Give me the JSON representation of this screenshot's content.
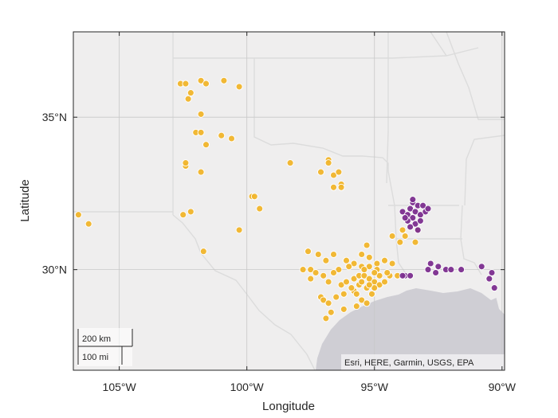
{
  "map": {
    "basemap_attribution": "Esri, HERE, Garmin, USGS, EPA",
    "colors": {
      "land": "#efeeee",
      "water": "#cfced4",
      "border": "#dcdcdc",
      "grid": "#c8c8c8",
      "frame": "#262626"
    }
  },
  "axes": {
    "xlabel": "Longitude",
    "ylabel": "Latitude",
    "xticks": [
      {
        "value": -105,
        "label": "105°W"
      },
      {
        "value": -100,
        "label": "100°W"
      },
      {
        "value": -95,
        "label": "95°W"
      },
      {
        "value": -90,
        "label": "90°W"
      }
    ],
    "yticks": [
      {
        "value": 35,
        "label": "35°N"
      },
      {
        "value": 30,
        "label": "30°N"
      }
    ],
    "lon_range": [
      -106.8,
      -89.9
    ],
    "lat_range": [
      26.7,
      37.8
    ]
  },
  "scale_bar": {
    "km_label": "200 km",
    "mi_label": "100 mi"
  },
  "chart_data": {
    "type": "scatter",
    "xlabel": "Longitude",
    "ylabel": "Latitude",
    "xlim": [
      -106.8,
      -89.9
    ],
    "ylim": [
      26.7,
      37.8
    ],
    "series": [
      {
        "color": "#f0b42a",
        "points": [
          [
            -106.6,
            31.8
          ],
          [
            -106.2,
            31.5
          ],
          [
            -102.6,
            36.1
          ],
          [
            -102.4,
            36.1
          ],
          [
            -101.8,
            36.2
          ],
          [
            -101.6,
            36.1
          ],
          [
            -100.9,
            36.2
          ],
          [
            -100.3,
            36.0
          ],
          [
            -102.2,
            35.8
          ],
          [
            -102.3,
            35.6
          ],
          [
            -101.8,
            35.1
          ],
          [
            -102.0,
            34.5
          ],
          [
            -101.8,
            34.5
          ],
          [
            -101.6,
            34.1
          ],
          [
            -101.0,
            34.4
          ],
          [
            -100.6,
            34.3
          ],
          [
            -102.4,
            33.4
          ],
          [
            -102.4,
            33.5
          ],
          [
            -101.8,
            33.2
          ],
          [
            -99.8,
            32.4
          ],
          [
            -99.7,
            32.4
          ],
          [
            -99.5,
            32.0
          ],
          [
            -102.5,
            31.8
          ],
          [
            -102.2,
            31.9
          ],
          [
            -100.3,
            31.3
          ],
          [
            -101.7,
            30.6
          ],
          [
            -98.3,
            33.5
          ],
          [
            -97.1,
            33.2
          ],
          [
            -96.8,
            33.6
          ],
          [
            -96.8,
            33.5
          ],
          [
            -96.6,
            33.1
          ],
          [
            -96.4,
            33.2
          ],
          [
            -96.3,
            32.8
          ],
          [
            -96.6,
            32.7
          ],
          [
            -96.3,
            32.7
          ],
          [
            -93.9,
            31.3
          ],
          [
            -93.8,
            31.1
          ],
          [
            -94.3,
            31.1
          ],
          [
            -93.4,
            30.9
          ],
          [
            -93.3,
            31.3
          ],
          [
            -94.0,
            30.9
          ],
          [
            -95.3,
            30.8
          ],
          [
            -95.5,
            30.5
          ],
          [
            -95.2,
            30.4
          ],
          [
            -97.6,
            30.6
          ],
          [
            -97.2,
            30.5
          ],
          [
            -96.6,
            30.5
          ],
          [
            -96.9,
            30.3
          ],
          [
            -96.4,
            30.0
          ],
          [
            -96.1,
            30.3
          ],
          [
            -95.8,
            30.2
          ],
          [
            -95.5,
            30.1
          ],
          [
            -95.2,
            30.1
          ],
          [
            -94.9,
            30.2
          ],
          [
            -94.6,
            30.3
          ],
          [
            -94.3,
            30.2
          ],
          [
            -97.8,
            30.0
          ],
          [
            -97.5,
            30.0
          ],
          [
            -97.3,
            29.9
          ],
          [
            -97.5,
            29.7
          ],
          [
            -97.0,
            29.8
          ],
          [
            -96.8,
            29.6
          ],
          [
            -97.1,
            29.1
          ],
          [
            -97.0,
            29.0
          ],
          [
            -96.8,
            28.9
          ],
          [
            -96.5,
            29.1
          ],
          [
            -96.2,
            29.2
          ],
          [
            -95.8,
            29.3
          ],
          [
            -95.5,
            29.0
          ],
          [
            -95.3,
            28.9
          ],
          [
            -95.7,
            28.8
          ],
          [
            -96.9,
            28.4
          ],
          [
            -96.7,
            28.6
          ],
          [
            -96.2,
            28.7
          ],
          [
            -96.3,
            29.5
          ],
          [
            -96.1,
            29.6
          ],
          [
            -95.8,
            29.7
          ],
          [
            -95.6,
            29.8
          ],
          [
            -95.4,
            29.8
          ],
          [
            -95.2,
            29.7
          ],
          [
            -95.0,
            29.6
          ],
          [
            -94.8,
            29.5
          ],
          [
            -94.6,
            29.6
          ],
          [
            -94.4,
            29.8
          ],
          [
            -94.1,
            29.8
          ],
          [
            -95.6,
            29.5
          ],
          [
            -95.3,
            29.4
          ],
          [
            -95.0,
            29.4
          ],
          [
            -94.8,
            29.8
          ],
          [
            -95.9,
            29.4
          ],
          [
            -95.7,
            29.2
          ],
          [
            -95.1,
            29.2
          ],
          [
            -94.9,
            30.0
          ],
          [
            -95.4,
            30.0
          ],
          [
            -96.0,
            30.1
          ],
          [
            -96.6,
            29.9
          ],
          [
            -94.5,
            29.9
          ],
          [
            -95.0,
            29.9
          ],
          [
            -95.5,
            29.6
          ],
          [
            -95.2,
            29.5
          ]
        ]
      },
      {
        "color": "#7b2d8e",
        "points": [
          [
            -93.9,
            31.9
          ],
          [
            -93.7,
            31.8
          ],
          [
            -93.6,
            32.0
          ],
          [
            -93.4,
            31.9
          ],
          [
            -93.5,
            32.2
          ],
          [
            -93.3,
            32.1
          ],
          [
            -93.2,
            31.8
          ],
          [
            -93.0,
            31.9
          ],
          [
            -93.5,
            31.7
          ],
          [
            -93.7,
            31.6
          ],
          [
            -93.4,
            31.5
          ],
          [
            -93.2,
            31.6
          ],
          [
            -93.1,
            32.1
          ],
          [
            -92.9,
            32.0
          ],
          [
            -93.6,
            31.4
          ],
          [
            -93.8,
            31.7
          ],
          [
            -93.3,
            31.3
          ],
          [
            -93.5,
            32.3
          ],
          [
            -92.8,
            30.2
          ],
          [
            -92.5,
            30.1
          ],
          [
            -92.2,
            30.0
          ],
          [
            -92.0,
            30.0
          ],
          [
            -91.6,
            30.0
          ],
          [
            -90.8,
            30.1
          ],
          [
            -90.4,
            29.9
          ],
          [
            -90.5,
            29.7
          ],
          [
            -90.3,
            29.4
          ],
          [
            -93.8,
            29.8
          ],
          [
            -93.6,
            29.8
          ],
          [
            -93.9,
            29.8
          ],
          [
            -92.6,
            29.9
          ],
          [
            -92.9,
            30.0
          ]
        ]
      }
    ]
  }
}
